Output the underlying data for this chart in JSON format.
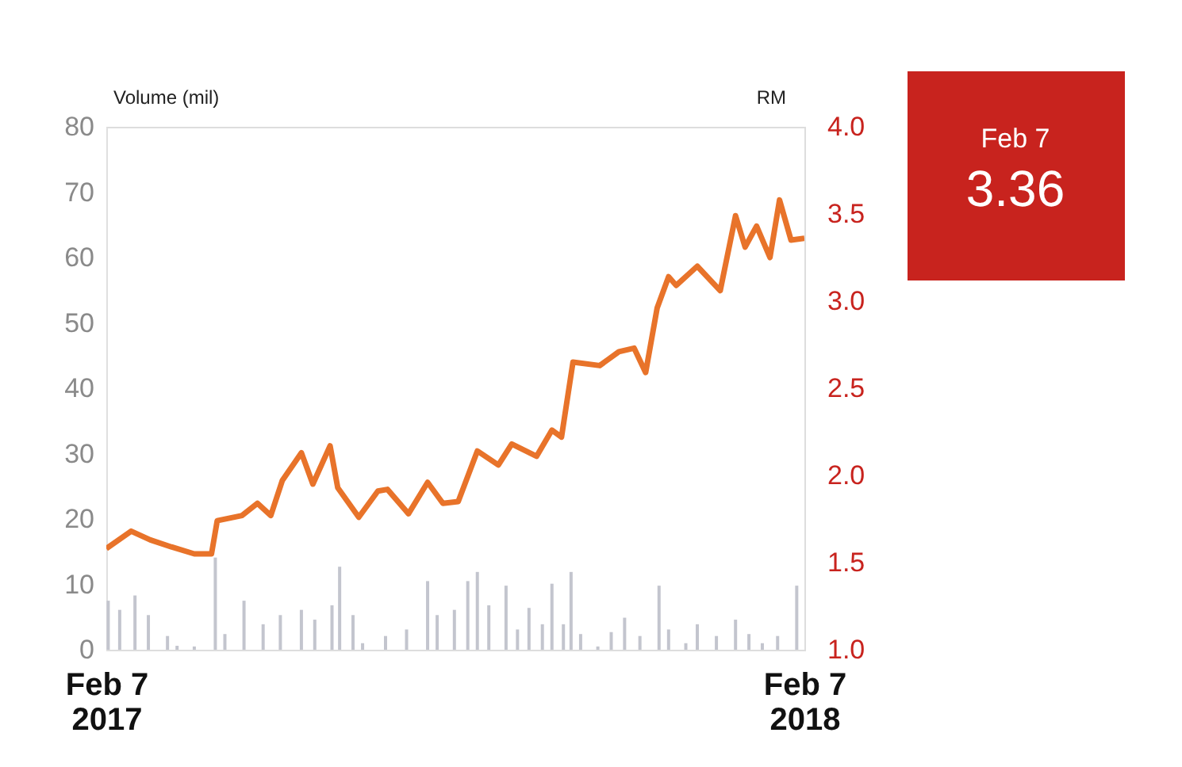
{
  "chart_data": {
    "type": "line",
    "ylabel": "Volume (mil)",
    "y2label": "RM",
    "xlim": [
      "2017-02-07",
      "2018-02-07"
    ],
    "xticks": [
      {
        "value": "2017-02-07",
        "label": "Feb 7\n2017"
      },
      {
        "value": "2018-02-07",
        "label": "Feb 7\n2018"
      }
    ],
    "ylim": [
      0,
      80
    ],
    "yticks": [
      0,
      10,
      20,
      30,
      40,
      50,
      60,
      70,
      80
    ],
    "y2lim": [
      1,
      4
    ],
    "y2ticks": [
      {
        "value": 1,
        "label": "1.0"
      },
      {
        "value": 1.5,
        "label": "1.5"
      },
      {
        "value": 2,
        "label": "2.0"
      },
      {
        "value": 2.5,
        "label": "2.5"
      },
      {
        "value": 3,
        "label": "3.0"
      },
      {
        "value": 3.5,
        "label": "3.5"
      },
      {
        "value": 4,
        "label": "4.0"
      }
    ],
    "grid": false,
    "series": [
      {
        "type": "bar",
        "color": "#c3c5ce",
        "x": [
          "2017-02-08",
          "2017-02-14",
          "2017-02-22",
          "2017-03-01",
          "2017-03-11",
          "2017-03-16",
          "2017-03-25",
          "2017-04-05",
          "2017-04-10",
          "2017-04-20",
          "2017-04-30",
          "2017-05-09",
          "2017-05-20",
          "2017-05-27",
          "2017-06-05",
          "2017-06-09",
          "2017-06-16",
          "2017-06-21",
          "2017-07-03",
          "2017-07-14",
          "2017-07-25",
          "2017-07-30",
          "2017-08-08",
          "2017-08-15",
          "2017-08-20",
          "2017-08-26",
          "2017-09-04",
          "2017-09-10",
          "2017-09-16",
          "2017-09-23",
          "2017-09-28",
          "2017-10-04",
          "2017-10-08",
          "2017-10-13",
          "2017-10-22",
          "2017-10-29",
          "2017-11-05",
          "2017-11-13",
          "2017-11-23",
          "2017-11-28",
          "2017-12-07",
          "2017-12-13",
          "2017-12-23",
          "2018-01-02",
          "2018-01-09",
          "2018-01-16",
          "2018-01-24",
          "2018-02-03"
        ],
        "values": [
          7.5,
          6.1,
          8.3,
          5.3,
          2.1,
          0.6,
          0.5,
          14.1,
          2.4,
          7.5,
          3.9,
          5.3,
          6.1,
          4.6,
          6.8,
          12.7,
          5.3,
          1.0,
          2.1,
          3.1,
          10.5,
          5.3,
          6.1,
          10.5,
          11.9,
          6.8,
          9.8,
          3.1,
          6.4,
          3.9,
          10.1,
          3.9,
          11.9,
          2.4,
          0.5,
          2.7,
          4.9,
          2.1,
          9.8,
          3.1,
          1.0,
          3.9,
          2.1,
          4.6,
          2.4,
          1.0,
          2.1,
          9.8
        ]
      },
      {
        "axis": "y2",
        "color": "#e8732a",
        "x": [
          "2017-02-07",
          "2017-02-20",
          "2017-03-02",
          "2017-03-13",
          "2017-03-25",
          "2017-04-03",
          "2017-04-06",
          "2017-04-19",
          "2017-04-27",
          "2017-05-04",
          "2017-05-10",
          "2017-05-20",
          "2017-05-26",
          "2017-06-04",
          "2017-06-08",
          "2017-06-19",
          "2017-06-29",
          "2017-07-04",
          "2017-07-15",
          "2017-07-25",
          "2017-08-02",
          "2017-08-10",
          "2017-08-20",
          "2017-08-31",
          "2017-09-07",
          "2017-09-20",
          "2017-09-28",
          "2017-10-03",
          "2017-10-09",
          "2017-10-23",
          "2017-11-02",
          "2017-11-10",
          "2017-11-16",
          "2017-11-22",
          "2017-11-28",
          "2017-12-02",
          "2017-12-13",
          "2017-12-25",
          "2018-01-02",
          "2018-01-07",
          "2018-01-13",
          "2018-01-20",
          "2018-01-25",
          "2018-01-31",
          "2018-02-07"
        ],
        "values": [
          1.58,
          1.68,
          1.63,
          1.59,
          1.55,
          1.55,
          1.74,
          1.77,
          1.84,
          1.77,
          1.97,
          2.13,
          1.95,
          2.17,
          1.93,
          1.76,
          1.91,
          1.92,
          1.78,
          1.96,
          1.84,
          1.85,
          2.14,
          2.06,
          2.18,
          2.11,
          2.26,
          2.22,
          2.65,
          2.63,
          2.71,
          2.73,
          2.59,
          2.96,
          3.14,
          3.09,
          3.2,
          3.06,
          3.49,
          3.31,
          3.43,
          3.25,
          3.58,
          3.35,
          3.36
        ]
      }
    ],
    "annotations": [
      "Feb 7",
      "3.36"
    ]
  }
}
